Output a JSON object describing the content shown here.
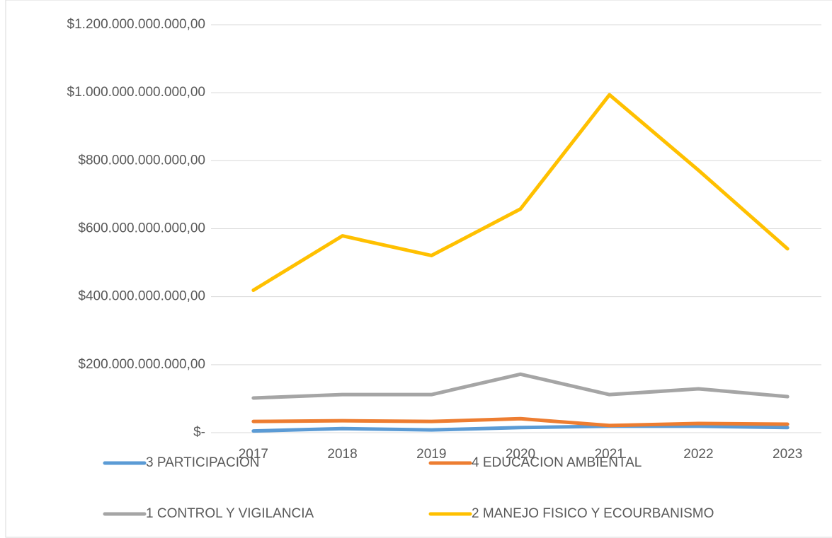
{
  "chart_data": {
    "type": "line",
    "categories": [
      "2017",
      "2018",
      "2019",
      "2020",
      "2021",
      "2022",
      "2023"
    ],
    "series": [
      {
        "name": "3 PARTICIPACION",
        "color": "#5b9bd5",
        "values": [
          5000000000,
          12000000000,
          8000000000,
          15000000000,
          19000000000,
          19000000000,
          15000000000
        ]
      },
      {
        "name": "4 EDUCACION AMBIENTAL",
        "color": "#ed7d31",
        "values": [
          33000000000,
          35000000000,
          33000000000,
          41000000000,
          21000000000,
          27000000000,
          25000000000
        ]
      },
      {
        "name": "1 CONTROL Y VIGILANCIA",
        "color": "#a5a5a5",
        "values": [
          102000000000,
          112000000000,
          112000000000,
          172000000000,
          112000000000,
          129000000000,
          106000000000
        ]
      },
      {
        "name": "2 MANEJO FISICO Y ECOURBANISMO",
        "color": "#ffc000",
        "values": [
          419000000000,
          579000000000,
          521000000000,
          658000000000,
          994000000000,
          772000000000,
          541000000000
        ]
      }
    ],
    "ylim": [
      0,
      1200000000000
    ],
    "yticks": [
      {
        "value": 0,
        "label": "$-"
      },
      {
        "value": 200000000000,
        "label": "$200.000.000.000,00"
      },
      {
        "value": 400000000000,
        "label": "$400.000.000.000,00"
      },
      {
        "value": 600000000000,
        "label": "$600.000.000.000,00"
      },
      {
        "value": 800000000000,
        "label": "$800.000.000.000,00"
      },
      {
        "value": 1000000000000,
        "label": "$1.000.000.000.000,00"
      },
      {
        "value": 1200000000000,
        "label": "$1.200.000.000.000,00"
      }
    ],
    "grid": true,
    "legend": "bottom"
  }
}
